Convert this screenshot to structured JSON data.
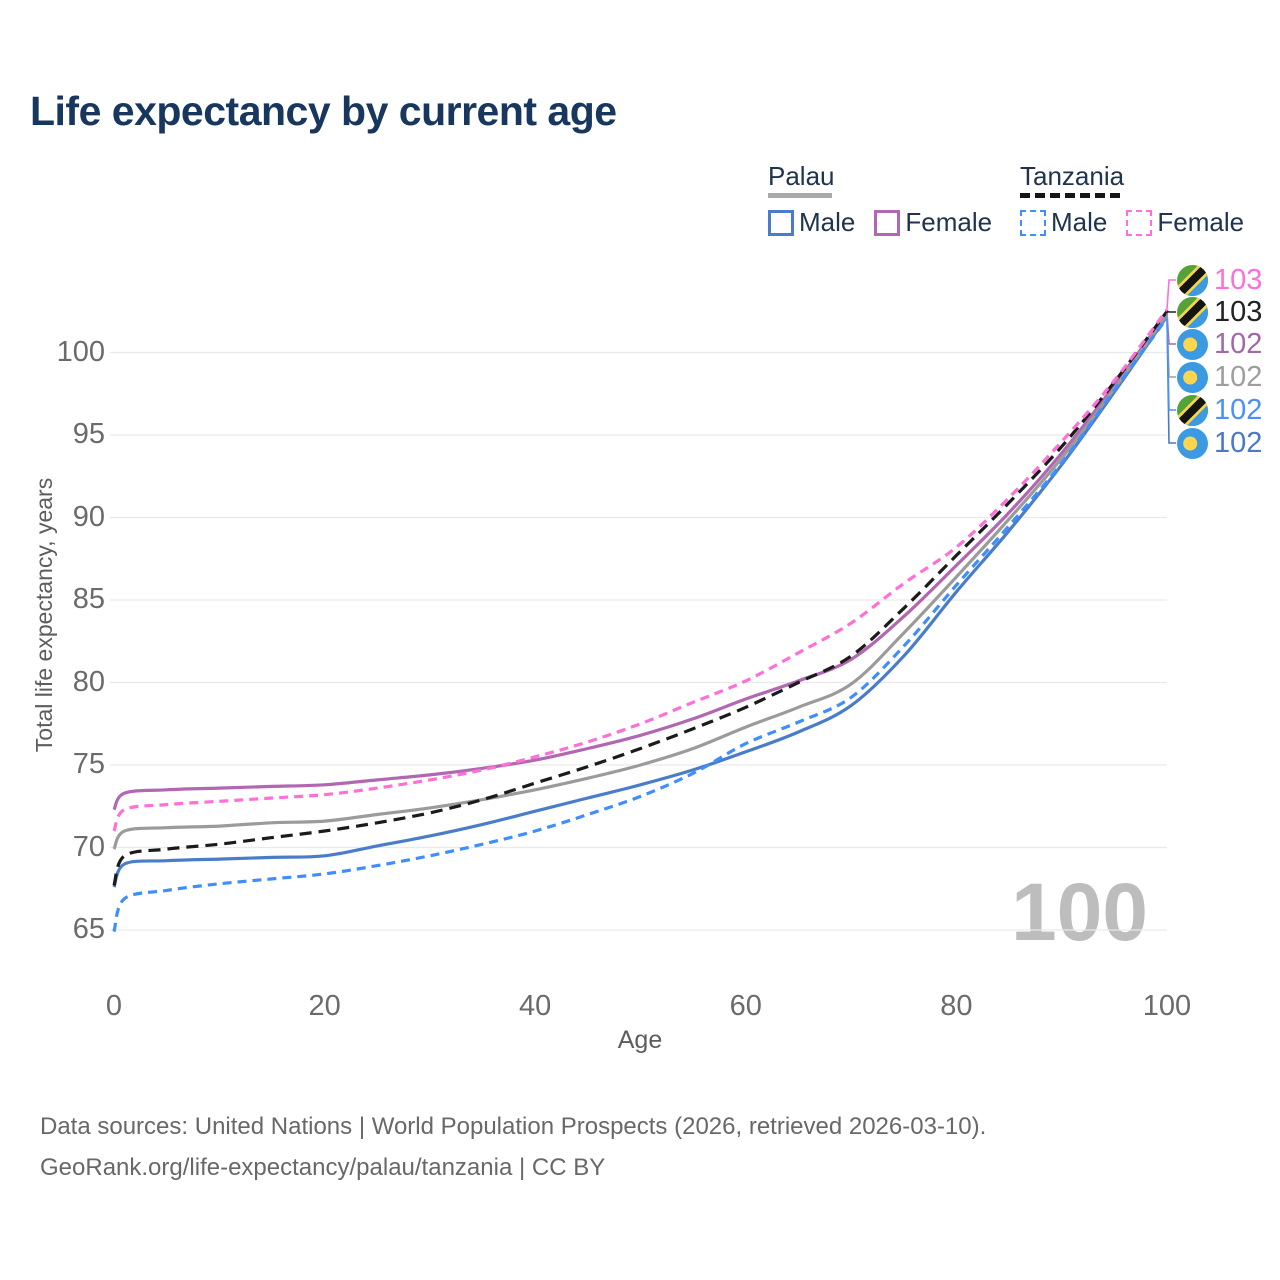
{
  "title": "Life expectancy by current age",
  "legend": {
    "groups": [
      {
        "name": "Palau",
        "line_style": "solid",
        "underline_color": "#a9a9a9",
        "items": [
          {
            "label": "Male",
            "color": "#4a7dc9"
          },
          {
            "label": "Female",
            "color": "#b167b1"
          }
        ]
      },
      {
        "name": "Tanzania",
        "line_style": "dashed",
        "underline_color": "#151515",
        "items": [
          {
            "label": "Male",
            "color": "#3f8eff"
          },
          {
            "label": "Female",
            "color": "#ff6fd8"
          }
        ]
      }
    ]
  },
  "chart_data": {
    "type": "line",
    "title": "Life expectancy by current age",
    "xlabel": "Age",
    "ylabel": "Total life expectancy, years",
    "xlim": [
      0,
      100
    ],
    "ylim": [
      63,
      104
    ],
    "x_ticks": [
      0,
      20,
      40,
      60,
      80,
      100
    ],
    "y_ticks": [
      65,
      70,
      75,
      80,
      85,
      90,
      95,
      100
    ],
    "grid": "horizontal",
    "legend_position": "top-right",
    "watermark": "100",
    "x": [
      0,
      1,
      5,
      10,
      15,
      20,
      25,
      30,
      35,
      40,
      45,
      50,
      55,
      60,
      65,
      70,
      75,
      80,
      85,
      90,
      95,
      100
    ],
    "series": [
      {
        "name": "Palau Male",
        "country": "Palau",
        "sex": "Male",
        "color": "#4a7dc9",
        "dash": "solid",
        "values": [
          67.6,
          69.0,
          69.2,
          69.3,
          69.4,
          69.5,
          70.1,
          70.7,
          71.4,
          72.2,
          73.0,
          73.8,
          74.7,
          75.8,
          77.0,
          78.6,
          81.6,
          85.5,
          89.2,
          93.2,
          97.6,
          102.2
        ],
        "end_label": {
          "text": "102",
          "color": "#4a79c9",
          "flag": "palau",
          "row": 5
        }
      },
      {
        "name": "Palau Female",
        "country": "Palau",
        "sex": "Female",
        "color": "#b167b1",
        "dash": "solid",
        "values": [
          72.3,
          73.3,
          73.5,
          73.6,
          73.7,
          73.8,
          74.1,
          74.4,
          74.8,
          75.3,
          76.0,
          76.8,
          77.8,
          79.0,
          80.1,
          81.4,
          84.0,
          87.1,
          90.3,
          93.9,
          98.0,
          102.4
        ],
        "end_label": {
          "text": "102",
          "color": "#a169a8",
          "flag": "palau",
          "row": 2
        }
      },
      {
        "name": "Palau Both sexes",
        "country": "Palau",
        "sex": "Both",
        "color": "#9b9b9b",
        "dash": "solid",
        "values": [
          69.9,
          71.0,
          71.2,
          71.3,
          71.5,
          71.6,
          72.0,
          72.4,
          72.9,
          73.5,
          74.2,
          75.0,
          76.0,
          77.3,
          78.5,
          79.9,
          83.0,
          86.4,
          89.9,
          93.6,
          97.8,
          102.3
        ],
        "end_label": {
          "text": "102",
          "color": "#9e9e9e",
          "flag": "palau",
          "row": 3
        }
      },
      {
        "name": "Tanzania Male",
        "country": "Tanzania",
        "sex": "Male",
        "color": "#3f8eff",
        "dash": "dashed",
        "values": [
          64.9,
          66.9,
          67.4,
          67.8,
          68.1,
          68.4,
          68.9,
          69.5,
          70.2,
          71.0,
          72.0,
          73.1,
          74.5,
          76.3,
          77.6,
          79.1,
          82.2,
          85.9,
          89.5,
          93.3,
          97.7,
          102.1
        ],
        "end_label": {
          "text": "102",
          "color": "#4a90ff",
          "flag": "tanzania",
          "row": 4
        }
      },
      {
        "name": "Tanzania Both sexes",
        "country": "Tanzania",
        "sex": "Both",
        "color": "#1b1b1b",
        "dash": "dashed",
        "values": [
          67.7,
          69.5,
          69.9,
          70.2,
          70.6,
          71.0,
          71.5,
          72.1,
          72.9,
          73.9,
          74.9,
          76.0,
          77.2,
          78.5,
          80.0,
          81.6,
          84.5,
          87.7,
          90.9,
          94.3,
          98.2,
          102.5
        ],
        "end_label": {
          "text": "103",
          "color": "#222222",
          "flag": "tanzania",
          "row": 1
        }
      },
      {
        "name": "Tanzania Female",
        "country": "Tanzania",
        "sex": "Female",
        "color": "#ff6fd8",
        "dash": "dashed",
        "values": [
          71.0,
          72.3,
          72.6,
          72.8,
          73.0,
          73.2,
          73.6,
          74.1,
          74.7,
          75.5,
          76.4,
          77.5,
          78.8,
          80.1,
          81.8,
          83.6,
          86.0,
          88.2,
          91.2,
          94.6,
          98.3,
          102.6
        ],
        "end_label": {
          "text": "103",
          "color": "#ff6fd8",
          "flag": "tanzania",
          "row": 0
        }
      }
    ]
  },
  "colors": {
    "title": "#17375e",
    "grid": "#e9e9e9",
    "axis_text": "#6b6b6b",
    "watermark": "#bdbdbd"
  },
  "footer": {
    "line1": "Data sources: United Nations | World Population Prospects (2026, retrieved 2026-03-10).",
    "line2": "GeoRank.org/life-expectancy/palau/tanzania | CC BY"
  }
}
